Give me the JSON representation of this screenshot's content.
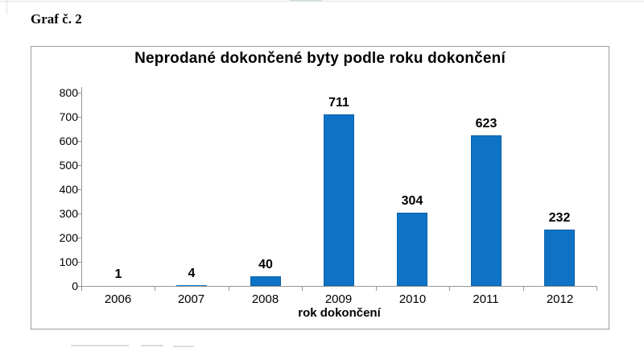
{
  "page": {
    "caption": "Graf č. 2"
  },
  "chart_data": {
    "type": "bar",
    "title": "Neprodané dokončené byty podle roku dokončení",
    "categories": [
      "2006",
      "2007",
      "2008",
      "2009",
      "2010",
      "2011",
      "2012"
    ],
    "values": [
      1,
      4,
      40,
      711,
      304,
      623,
      232
    ],
    "xlabel": "rok dokončení",
    "ylabel": "",
    "ylim": [
      0,
      800
    ],
    "ytick_step": 100,
    "bar_color": "#0e73c5",
    "bar_border_color": "#0b62ab",
    "axis_color": "#999999",
    "grid": false,
    "legend": "none",
    "data_labels": true
  }
}
